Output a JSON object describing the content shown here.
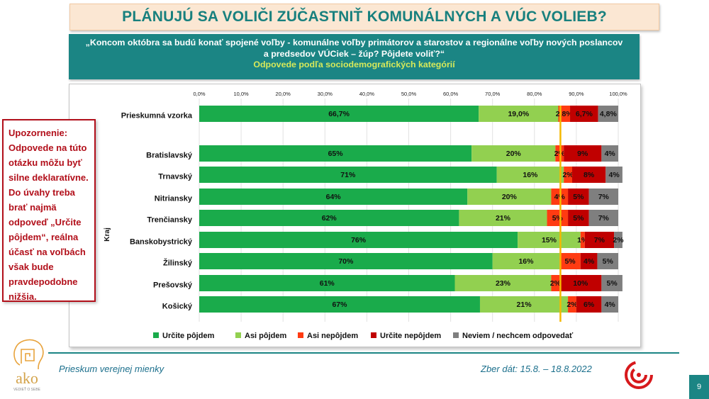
{
  "title": "PLÁNUJÚ SA VOLIČI ZÚČASTNIŤ KOMUNÁLNYCH A VÚC VOLIEB?",
  "question": "„Koncom októbra sa budú konať spojené voľby - komunálne voľby primátorov a starostov a regionálne voľby nových poslancov a predsedov VÚCiek – žúp? Pôjdete voliť?“",
  "question_sub": "Odpovede podľa sociodemografických kategórií",
  "warning": "Upozornenie: Odpovede na túto otázku môžu byť silne deklaratívne. Do úvahy treba brať najmä odpoveď „Určite pôjdem“, reálna účasť na voľbách však bude pravdepodobne nižšia.",
  "footer": {
    "left": "Prieskum verejnej mienky",
    "right": "Zber dát: 15.8. – 18.8.2022",
    "page": "9"
  },
  "logo": {
    "brand": "ako",
    "tagline": "VEDIEŤ O SEBE"
  },
  "colors": {
    "teal": "#1b8584",
    "title_bg": "#fbe7d3",
    "warning": "#b20f1a",
    "reference_line": "#f5b800"
  },
  "chart_data": {
    "type": "stacked-bar-horizontal",
    "xlim": [
      0,
      100
    ],
    "tick_labels": [
      "0,0%",
      "10,0%",
      "20,0%",
      "30,0%",
      "40,0%",
      "50,0%",
      "60,0%",
      "70,0%",
      "80,0%",
      "90,0%",
      "100,0%"
    ],
    "group_label": "Kraj",
    "legend_position": "bottom",
    "reference_line_value": 86.2,
    "series": [
      {
        "name": "Určite pôjdem",
        "color": "#1aab4b"
      },
      {
        "name": "Asi pôjdem",
        "color": "#92d050"
      },
      {
        "name": "Asi nepôjdem",
        "color": "#ff3b12"
      },
      {
        "name": "Určite nepôjdem",
        "color": "#c00000"
      },
      {
        "name": "Neviem / nechcem odpovedať",
        "color": "#7f7f7f"
      }
    ],
    "rows": [
      {
        "category": "Prieskumná vzorka",
        "values": [
          66.7,
          19.0,
          2.8,
          6.7,
          4.8
        ],
        "labels": [
          "66,7%",
          "19,0%",
          "2,8%",
          "6,7%",
          "4,8%"
        ]
      },
      {
        "category": "Bratislavský",
        "values": [
          65,
          20,
          2,
          9,
          4
        ],
        "labels": [
          "65%",
          "20%",
          "2%",
          "9%",
          "4%"
        ]
      },
      {
        "category": "Trnavský",
        "values": [
          71,
          16,
          2,
          8,
          4
        ],
        "labels": [
          "71%",
          "16%",
          "2%",
          "8%",
          "4%"
        ]
      },
      {
        "category": "Nitriansky",
        "values": [
          64,
          20,
          4,
          5,
          7
        ],
        "labels": [
          "64%",
          "20%",
          "4%",
          "5%",
          "7%"
        ]
      },
      {
        "category": "Trenčiansky",
        "values": [
          62,
          21,
          5,
          5,
          7
        ],
        "labels": [
          "62%",
          "21%",
          "5%",
          "5%",
          "7%"
        ]
      },
      {
        "category": "Banskobystrický",
        "values": [
          76,
          15,
          1,
          7,
          2
        ],
        "labels": [
          "76%",
          "15%",
          "1%",
          "7%",
          "2%"
        ]
      },
      {
        "category": "Žilinský",
        "values": [
          70,
          16,
          5,
          4,
          5
        ],
        "labels": [
          "70%",
          "16%",
          "5%",
          "4%",
          "5%"
        ]
      },
      {
        "category": "Prešovský",
        "values": [
          61,
          23,
          2,
          10,
          5
        ],
        "labels": [
          "61%",
          "23%",
          "2%",
          "10%",
          "5%"
        ]
      },
      {
        "category": "Košický",
        "values": [
          67,
          21,
          2,
          6,
          4
        ],
        "labels": [
          "67%",
          "21%",
          "2%",
          "6%",
          "4%"
        ]
      }
    ]
  }
}
